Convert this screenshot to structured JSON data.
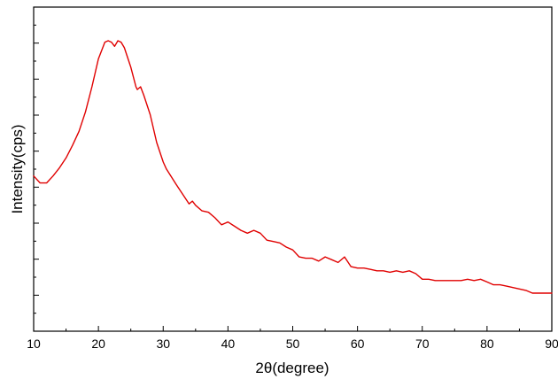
{
  "chart_data": {
    "type": "line",
    "title": "",
    "xlabel": "2θ(degree)",
    "ylabel": "Intensity(cps)",
    "xlim": [
      10,
      90
    ],
    "ylim": [
      0,
      100
    ],
    "x_ticks": [
      10,
      20,
      30,
      40,
      50,
      60,
      70,
      80,
      90
    ],
    "y_tick_labels_shown": false,
    "grid": false,
    "legend": "none",
    "series": [
      {
        "color": "#e00000",
        "x": [
          10,
          11,
          12,
          13,
          14,
          15,
          16,
          17,
          18,
          19,
          20,
          21,
          21.5,
          22,
          22.5,
          23,
          23.5,
          24,
          25,
          25.8,
          26,
          26.5,
          27,
          28,
          29,
          30,
          30.5,
          32,
          34,
          34.5,
          35,
          36,
          37,
          38,
          39,
          40,
          41,
          42,
          43,
          44,
          45,
          46,
          47,
          48,
          49,
          50,
          51,
          52,
          53,
          54,
          55,
          56,
          57,
          58,
          59,
          60,
          61,
          62,
          63,
          64,
          65,
          66,
          67,
          68,
          69,
          70,
          71,
          72,
          73,
          74,
          75,
          76,
          77,
          78,
          79,
          80,
          81,
          82,
          83,
          84,
          85,
          86,
          87,
          88,
          89,
          90
        ],
        "y": [
          51,
          48.5,
          48.5,
          51,
          54,
          57.5,
          62,
          67,
          74,
          83,
          93,
          99,
          99.5,
          99,
          97.5,
          99.5,
          99,
          97,
          90,
          83,
          82,
          83,
          80,
          73,
          63,
          56,
          53.5,
          48,
          41,
          42,
          40.5,
          38.5,
          38,
          36,
          33.5,
          34.5,
          33,
          31.5,
          30.5,
          31.5,
          30.5,
          28,
          27.5,
          27,
          25.5,
          24.5,
          22,
          21.5,
          21.5,
          20.5,
          22,
          21,
          20,
          22,
          18.5,
          18,
          18,
          17.5,
          17,
          17,
          16.5,
          17,
          16.5,
          17,
          16,
          14,
          14,
          13.5,
          13.5,
          13.5,
          13.5,
          13.5,
          14,
          13.5,
          14,
          13,
          12,
          12,
          11.5,
          11,
          10.5,
          10,
          9,
          9,
          9,
          9
        ]
      }
    ]
  }
}
